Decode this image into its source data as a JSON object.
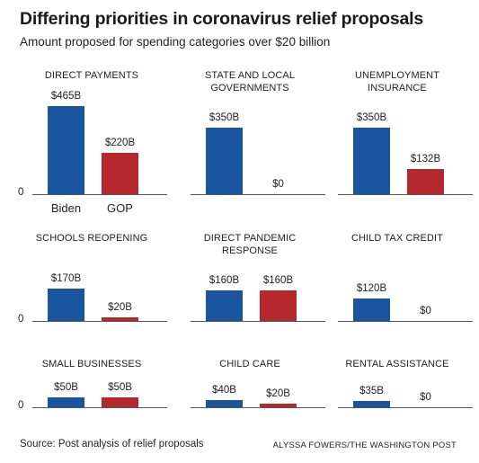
{
  "header": {
    "title": "Differing priorities in coronavirus relief proposals",
    "subtitle": "Amount proposed for spending categories over $20 billion"
  },
  "footer": {
    "source": "Source: Post analysis of relief proposals",
    "credit": "ALYSSA FOWERS/THE WASHINGTON POST"
  },
  "colors": {
    "biden": "#1a56a0",
    "gop": "#b5282e"
  },
  "chart_data": {
    "type": "bar",
    "unit": "billion dollars",
    "categories": [
      "Biden",
      "GOP"
    ],
    "zero_label": "0",
    "panels": [
      {
        "title": "DIRECT PAYMENTS",
        "values": [
          465,
          220
        ],
        "labels": [
          "$465B",
          "$220B"
        ]
      },
      {
        "title": "STATE AND LOCAL GOVERNMENTS",
        "values": [
          350,
          0
        ],
        "labels": [
          "$350B",
          "$0"
        ]
      },
      {
        "title": "UNEMPLOYMENT INSURANCE",
        "values": [
          350,
          132
        ],
        "labels": [
          "$350B",
          "$132B"
        ]
      },
      {
        "title": "SCHOOLS REOPENING",
        "values": [
          170,
          20
        ],
        "labels": [
          "$170B",
          "$20B"
        ]
      },
      {
        "title": "DIRECT PANDEMIC RESPONSE",
        "values": [
          160,
          160
        ],
        "labels": [
          "$160B",
          "$160B"
        ]
      },
      {
        "title": "CHILD TAX CREDIT",
        "values": [
          120,
          0
        ],
        "labels": [
          "$120B",
          "$0"
        ]
      },
      {
        "title": "SMALL BUSINESSES",
        "values": [
          50,
          50
        ],
        "labels": [
          "$50B",
          "$50B"
        ]
      },
      {
        "title": "CHILD CARE",
        "values": [
          40,
          20
        ],
        "labels": [
          "$40B",
          "$20B"
        ]
      },
      {
        "title": "RENTAL ASSISTANCE",
        "values": [
          35,
          0
        ],
        "labels": [
          "$35B",
          "$0"
        ]
      }
    ]
  }
}
